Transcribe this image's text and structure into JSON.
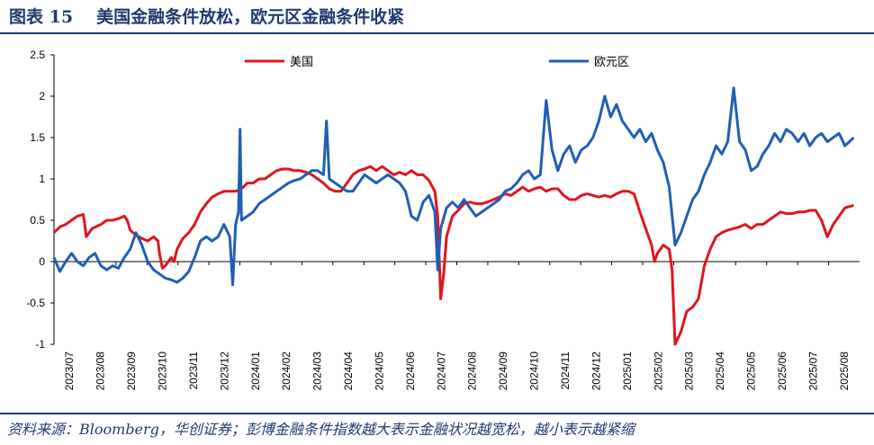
{
  "header": {
    "figure_no": "图表 15",
    "title": "美国金融条件放松，欧元区金融条件收紧"
  },
  "footer": {
    "source": "资料来源：Bloomberg，华创证券；彭博金融条件指数越大表示金融状况越宽松，越小表示越紧缩"
  },
  "chart_data": {
    "type": "line",
    "ylim": [
      -1,
      2.5
    ],
    "yticks": [
      "2.5",
      "2",
      "1.5",
      "1",
      "0.5",
      "0",
      "-0.5",
      "-1"
    ],
    "ytick_values": [
      2.5,
      2,
      1.5,
      1,
      0.5,
      0,
      -0.5,
      -1
    ],
    "x_categories": [
      "2023/07",
      "2023/08",
      "2023/09",
      "2023/10",
      "2023/11",
      "2023/12",
      "2024/01",
      "2024/02",
      "2024/03",
      "2024/04",
      "2024/05",
      "2024/06",
      "2024/07",
      "2024/08",
      "2024/09",
      "2024/10",
      "2024/11",
      "2024/12",
      "2025/01",
      "2025/02",
      "2025/03",
      "2025/04",
      "2025/05",
      "2025/06",
      "2025/07",
      "2025/08"
    ],
    "legend_position": "top",
    "series": [
      {
        "name": "美国",
        "color": "#e0151c",
        "values": [
          [
            0,
            0.35
          ],
          [
            0.2,
            0.42
          ],
          [
            0.4,
            0.45
          ],
          [
            0.6,
            0.5
          ],
          [
            0.8,
            0.55
          ],
          [
            1.0,
            0.57
          ],
          [
            1.05,
            0.45
          ],
          [
            1.1,
            0.3
          ],
          [
            1.3,
            0.4
          ],
          [
            1.6,
            0.45
          ],
          [
            1.8,
            0.5
          ],
          [
            2.0,
            0.5
          ],
          [
            2.2,
            0.52
          ],
          [
            2.4,
            0.55
          ],
          [
            2.5,
            0.5
          ],
          [
            2.6,
            0.38
          ],
          [
            2.8,
            0.32
          ],
          [
            3.0,
            0.28
          ],
          [
            3.2,
            0.25
          ],
          [
            3.4,
            0.3
          ],
          [
            3.55,
            0.25
          ],
          [
            3.6,
            0.1
          ],
          [
            3.7,
            -0.08
          ],
          [
            3.8,
            -0.05
          ],
          [
            4.0,
            0.05
          ],
          [
            4.1,
            0.0
          ],
          [
            4.2,
            0.15
          ],
          [
            4.4,
            0.28
          ],
          [
            4.6,
            0.35
          ],
          [
            4.8,
            0.45
          ],
          [
            5.0,
            0.6
          ],
          [
            5.2,
            0.7
          ],
          [
            5.4,
            0.78
          ],
          [
            5.6,
            0.82
          ],
          [
            5.8,
            0.85
          ],
          [
            6.0,
            0.85
          ],
          [
            6.2,
            0.85
          ],
          [
            6.4,
            0.88
          ],
          [
            6.6,
            0.95
          ],
          [
            6.8,
            0.95
          ],
          [
            7.0,
            1.0
          ],
          [
            7.2,
            1.0
          ],
          [
            7.4,
            1.05
          ],
          [
            7.6,
            1.1
          ],
          [
            7.8,
            1.12
          ],
          [
            8.0,
            1.12
          ],
          [
            8.2,
            1.1
          ],
          [
            8.4,
            1.1
          ],
          [
            8.6,
            1.08
          ],
          [
            8.8,
            1.05
          ],
          [
            9.0,
            1.0
          ],
          [
            9.2,
            0.95
          ],
          [
            9.4,
            0.88
          ],
          [
            9.6,
            0.85
          ],
          [
            9.8,
            0.85
          ],
          [
            10.0,
            0.95
          ],
          [
            10.2,
            1.05
          ],
          [
            10.4,
            1.1
          ],
          [
            10.6,
            1.12
          ],
          [
            10.8,
            1.15
          ],
          [
            11.0,
            1.1
          ],
          [
            11.2,
            1.15
          ],
          [
            11.4,
            1.1
          ],
          [
            11.6,
            1.05
          ],
          [
            11.8,
            1.08
          ],
          [
            12.0,
            1.05
          ],
          [
            12.2,
            1.1
          ],
          [
            12.4,
            1.05
          ],
          [
            12.6,
            1.05
          ],
          [
            12.8,
            0.98
          ],
          [
            13.0,
            0.85
          ],
          [
            13.1,
            0.55
          ],
          [
            13.2,
            -0.45
          ],
          [
            13.3,
            -0.15
          ],
          [
            13.4,
            0.3
          ],
          [
            13.6,
            0.55
          ],
          [
            13.8,
            0.62
          ],
          [
            14.0,
            0.7
          ],
          [
            14.2,
            0.72
          ],
          [
            14.4,
            0.7
          ],
          [
            14.6,
            0.7
          ],
          [
            14.8,
            0.72
          ],
          [
            15.0,
            0.75
          ],
          [
            15.2,
            0.78
          ],
          [
            15.4,
            0.82
          ],
          [
            15.6,
            0.8
          ],
          [
            15.8,
            0.85
          ],
          [
            16.0,
            0.9
          ],
          [
            16.2,
            0.85
          ],
          [
            16.4,
            0.88
          ],
          [
            16.6,
            0.9
          ],
          [
            16.8,
            0.85
          ],
          [
            17.0,
            0.88
          ],
          [
            17.2,
            0.88
          ],
          [
            17.4,
            0.8
          ],
          [
            17.6,
            0.75
          ],
          [
            17.8,
            0.75
          ],
          [
            18.0,
            0.8
          ],
          [
            18.2,
            0.82
          ],
          [
            18.4,
            0.8
          ],
          [
            18.6,
            0.78
          ],
          [
            18.8,
            0.8
          ],
          [
            19.0,
            0.78
          ],
          [
            19.2,
            0.82
          ],
          [
            19.4,
            0.85
          ],
          [
            19.6,
            0.85
          ],
          [
            19.8,
            0.82
          ],
          [
            20.0,
            0.6
          ],
          [
            20.2,
            0.4
          ],
          [
            20.4,
            0.2
          ],
          [
            20.5,
            0.0
          ],
          [
            20.6,
            0.1
          ],
          [
            20.8,
            0.2
          ],
          [
            21.0,
            0.15
          ],
          [
            21.1,
            -0.1
          ],
          [
            21.2,
            -1.0
          ],
          [
            21.4,
            -0.85
          ],
          [
            21.6,
            -0.6
          ],
          [
            21.8,
            -0.55
          ],
          [
            22.0,
            -0.45
          ],
          [
            22.2,
            -0.05
          ],
          [
            22.4,
            0.15
          ],
          [
            22.6,
            0.3
          ],
          [
            22.8,
            0.35
          ],
          [
            23.0,
            0.38
          ],
          [
            23.2,
            0.4
          ],
          [
            23.4,
            0.42
          ],
          [
            23.6,
            0.45
          ],
          [
            23.8,
            0.4
          ],
          [
            24.0,
            0.45
          ],
          [
            24.2,
            0.45
          ],
          [
            24.4,
            0.5
          ],
          [
            24.6,
            0.55
          ],
          [
            24.8,
            0.6
          ],
          [
            25.0,
            0.58
          ],
          [
            25.2,
            0.58
          ],
          [
            25.4,
            0.6
          ],
          [
            25.6,
            0.6
          ],
          [
            25.8,
            0.62
          ],
          [
            26.0,
            0.62
          ],
          [
            26.2,
            0.5
          ],
          [
            26.4,
            0.3
          ],
          [
            26.6,
            0.45
          ],
          [
            26.8,
            0.55
          ],
          [
            27.0,
            0.65
          ],
          [
            27.3,
            0.68
          ]
        ]
      },
      {
        "name": "欧元区",
        "color": "#1f5fb4",
        "values": [
          [
            0,
            0.05
          ],
          [
            0.2,
            -0.12
          ],
          [
            0.4,
            0.0
          ],
          [
            0.6,
            0.1
          ],
          [
            0.8,
            0.0
          ],
          [
            1.0,
            -0.05
          ],
          [
            1.2,
            0.05
          ],
          [
            1.4,
            0.1
          ],
          [
            1.6,
            -0.05
          ],
          [
            1.8,
            -0.1
          ],
          [
            2.0,
            -0.05
          ],
          [
            2.2,
            -0.08
          ],
          [
            2.4,
            0.05
          ],
          [
            2.6,
            0.15
          ],
          [
            2.8,
            0.35
          ],
          [
            3.0,
            0.2
          ],
          [
            3.2,
            0.0
          ],
          [
            3.4,
            -0.1
          ],
          [
            3.6,
            -0.15
          ],
          [
            3.8,
            -0.2
          ],
          [
            4.0,
            -0.22
          ],
          [
            4.2,
            -0.25
          ],
          [
            4.4,
            -0.2
          ],
          [
            4.6,
            -0.12
          ],
          [
            4.8,
            0.05
          ],
          [
            5.0,
            0.25
          ],
          [
            5.2,
            0.3
          ],
          [
            5.4,
            0.25
          ],
          [
            5.6,
            0.3
          ],
          [
            5.8,
            0.45
          ],
          [
            6.0,
            0.3
          ],
          [
            6.1,
            -0.28
          ],
          [
            6.2,
            0.45
          ],
          [
            6.3,
            0.6
          ],
          [
            6.35,
            1.6
          ],
          [
            6.4,
            0.5
          ],
          [
            6.6,
            0.55
          ],
          [
            6.8,
            0.6
          ],
          [
            7.0,
            0.7
          ],
          [
            7.2,
            0.75
          ],
          [
            7.4,
            0.8
          ],
          [
            7.6,
            0.85
          ],
          [
            7.8,
            0.9
          ],
          [
            8.0,
            0.95
          ],
          [
            8.2,
            0.98
          ],
          [
            8.4,
            1.0
          ],
          [
            8.6,
            1.05
          ],
          [
            8.8,
            1.1
          ],
          [
            9.0,
            1.1
          ],
          [
            9.2,
            1.05
          ],
          [
            9.3,
            1.7
          ],
          [
            9.4,
            1.0
          ],
          [
            9.6,
            0.95
          ],
          [
            9.8,
            0.9
          ],
          [
            10.0,
            0.85
          ],
          [
            10.2,
            0.85
          ],
          [
            10.4,
            0.95
          ],
          [
            10.6,
            1.05
          ],
          [
            10.8,
            1.0
          ],
          [
            11.0,
            0.95
          ],
          [
            11.2,
            1.0
          ],
          [
            11.4,
            1.05
          ],
          [
            11.6,
            1.0
          ],
          [
            11.8,
            0.95
          ],
          [
            12.0,
            0.85
          ],
          [
            12.2,
            0.55
          ],
          [
            12.4,
            0.5
          ],
          [
            12.6,
            0.72
          ],
          [
            12.8,
            0.8
          ],
          [
            13.0,
            0.6
          ],
          [
            13.1,
            -0.1
          ],
          [
            13.2,
            0.4
          ],
          [
            13.4,
            0.65
          ],
          [
            13.6,
            0.72
          ],
          [
            13.8,
            0.65
          ],
          [
            14.0,
            0.75
          ],
          [
            14.2,
            0.65
          ],
          [
            14.4,
            0.55
          ],
          [
            14.6,
            0.6
          ],
          [
            14.8,
            0.65
          ],
          [
            15.0,
            0.7
          ],
          [
            15.2,
            0.75
          ],
          [
            15.4,
            0.85
          ],
          [
            15.6,
            0.88
          ],
          [
            15.8,
            0.95
          ],
          [
            16.0,
            1.05
          ],
          [
            16.2,
            1.1
          ],
          [
            16.4,
            1.0
          ],
          [
            16.6,
            1.05
          ],
          [
            16.8,
            1.95
          ],
          [
            17.0,
            1.35
          ],
          [
            17.2,
            1.1
          ],
          [
            17.4,
            1.3
          ],
          [
            17.6,
            1.4
          ],
          [
            17.8,
            1.2
          ],
          [
            18.0,
            1.35
          ],
          [
            18.2,
            1.4
          ],
          [
            18.4,
            1.5
          ],
          [
            18.6,
            1.7
          ],
          [
            18.8,
            2.0
          ],
          [
            19.0,
            1.75
          ],
          [
            19.2,
            1.9
          ],
          [
            19.4,
            1.7
          ],
          [
            19.6,
            1.6
          ],
          [
            19.8,
            1.5
          ],
          [
            20.0,
            1.6
          ],
          [
            20.2,
            1.45
          ],
          [
            20.4,
            1.55
          ],
          [
            20.6,
            1.35
          ],
          [
            20.8,
            1.2
          ],
          [
            21.0,
            0.9
          ],
          [
            21.2,
            0.2
          ],
          [
            21.4,
            0.35
          ],
          [
            21.6,
            0.55
          ],
          [
            21.8,
            0.75
          ],
          [
            22.0,
            0.85
          ],
          [
            22.2,
            1.05
          ],
          [
            22.4,
            1.2
          ],
          [
            22.6,
            1.4
          ],
          [
            22.8,
            1.3
          ],
          [
            23.0,
            1.45
          ],
          [
            23.2,
            2.1
          ],
          [
            23.4,
            1.45
          ],
          [
            23.6,
            1.35
          ],
          [
            23.8,
            1.1
          ],
          [
            24.0,
            1.15
          ],
          [
            24.2,
            1.3
          ],
          [
            24.4,
            1.4
          ],
          [
            24.6,
            1.55
          ],
          [
            24.8,
            1.45
          ],
          [
            25.0,
            1.6
          ],
          [
            25.2,
            1.55
          ],
          [
            25.4,
            1.45
          ],
          [
            25.6,
            1.55
          ],
          [
            25.8,
            1.4
          ],
          [
            26.0,
            1.5
          ],
          [
            26.2,
            1.55
          ],
          [
            26.4,
            1.45
          ],
          [
            26.6,
            1.5
          ],
          [
            26.8,
            1.55
          ],
          [
            27.0,
            1.4
          ],
          [
            27.3,
            1.5
          ]
        ]
      }
    ]
  }
}
